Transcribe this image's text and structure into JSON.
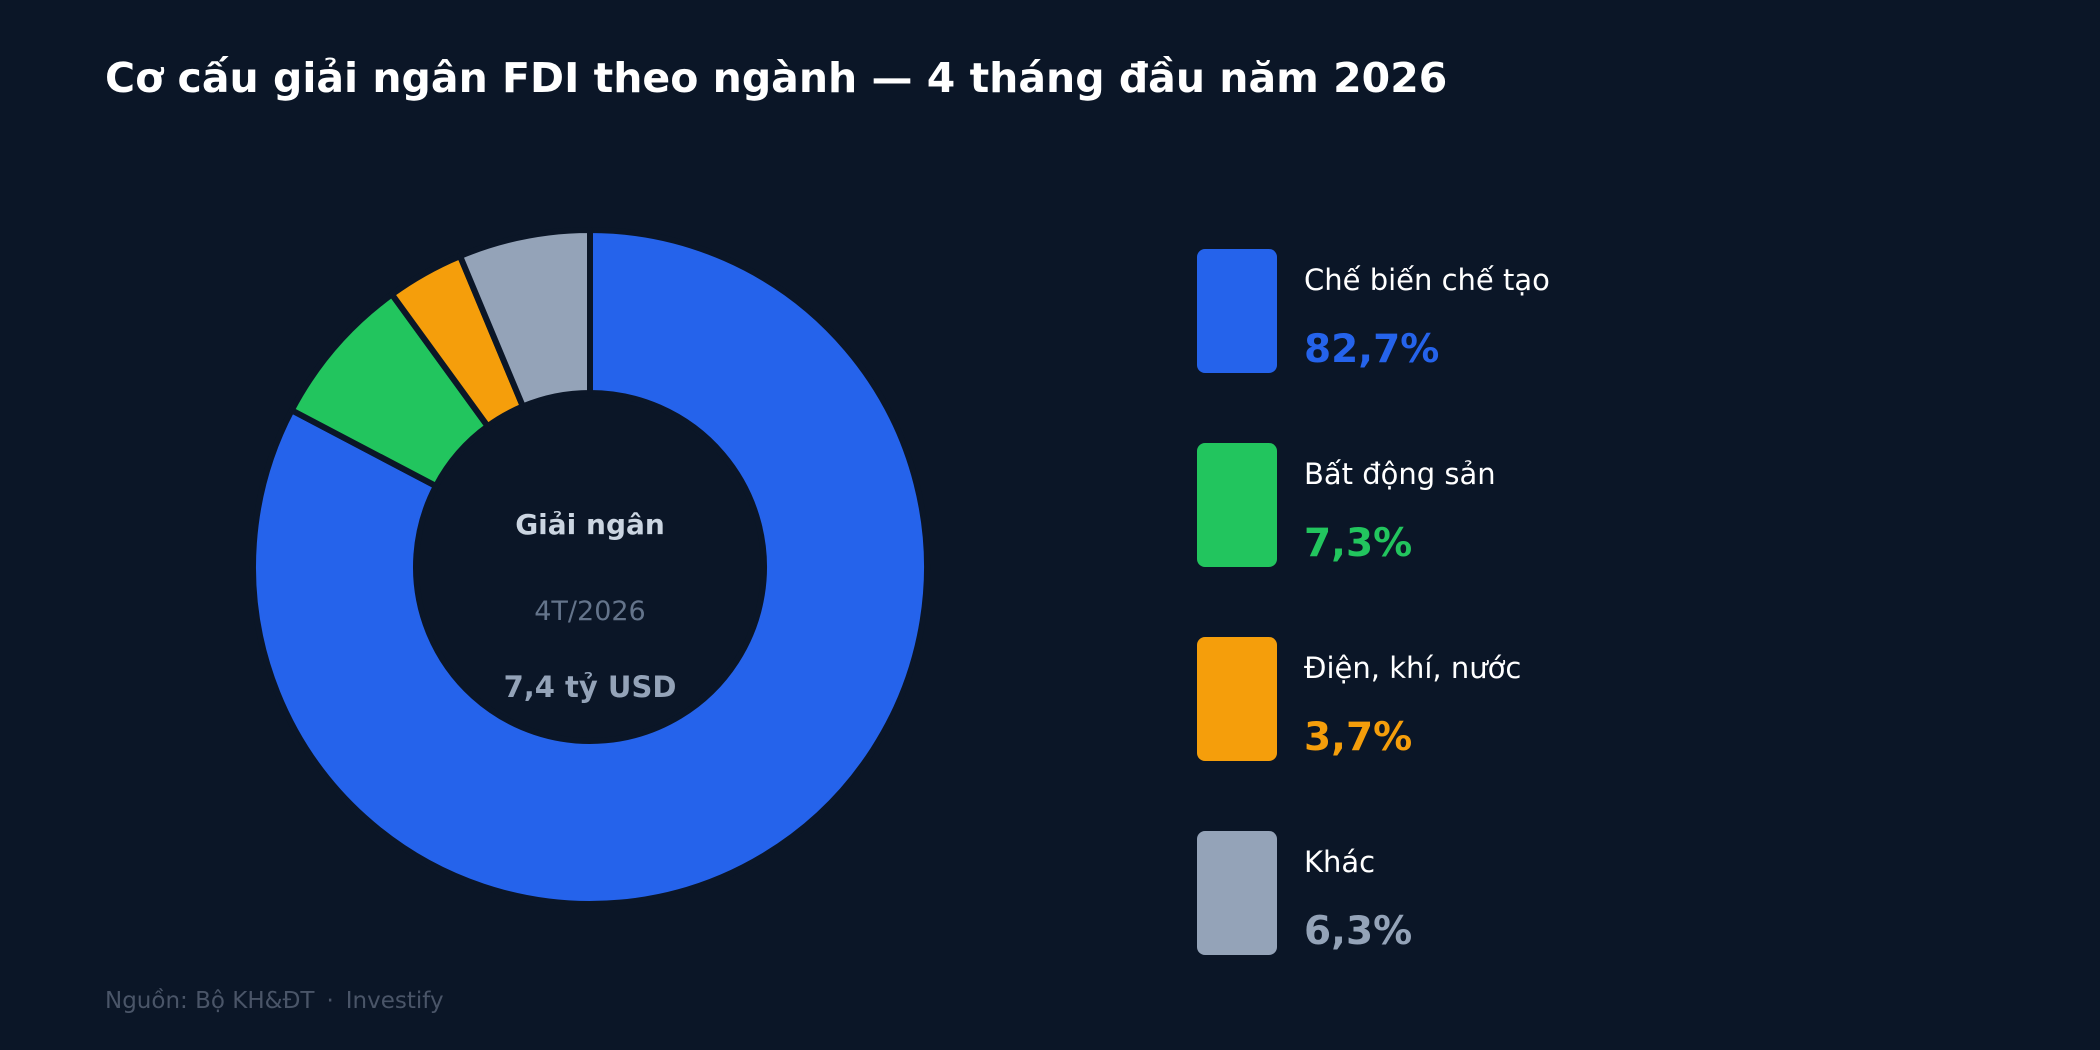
{
  "title": "Cơ cấu giải ngân FDI theo ngành — 4 tháng đầu năm 2026",
  "center": {
    "label": "Giải ngân",
    "period": "4T/2026",
    "total": "7,4 tỷ USD"
  },
  "source": {
    "text": "Nguồn: Bộ KH&ĐT",
    "separator": "·",
    "brand": "Investify"
  },
  "chart_data": {
    "type": "pie",
    "title": "Cơ cấu giải ngân FDI theo ngành — 4 tháng đầu năm 2026",
    "categories": [
      "Chế biến chế tạo",
      "Bất động sản",
      "Điện, khí, nước",
      "Khác"
    ],
    "values": [
      82.7,
      7.3,
      3.7,
      6.3
    ],
    "labels": [
      "82,7%",
      "7,3%",
      "3,7%",
      "6,3%"
    ],
    "colors": [
      "#2563eb",
      "#22c55e",
      "#f59e0b",
      "#94a3b8"
    ],
    "donut": true,
    "legend_position": "right"
  }
}
